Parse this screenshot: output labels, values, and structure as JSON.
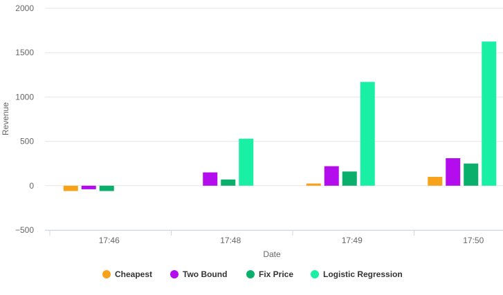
{
  "chart_data": {
    "type": "bar",
    "xlabel": "Date",
    "ylabel": "Revenue",
    "ylim": [
      -500,
      2000
    ],
    "yticks": [
      2000,
      1500,
      1000,
      500,
      0,
      -500
    ],
    "grid": true,
    "legend_position": "bottom",
    "categories": [
      "17:46",
      "17:48",
      "17:49",
      "17:50"
    ],
    "series": [
      {
        "name": "Cheapest",
        "color": "#f7a21b",
        "values": [
          -60,
          0,
          25,
          100
        ]
      },
      {
        "name": "Two Bound",
        "color": "#b30ded",
        "values": [
          -40,
          150,
          220,
          310
        ]
      },
      {
        "name": "Fix Price",
        "color": "#0aaf6c",
        "values": [
          -60,
          70,
          160,
          250
        ]
      },
      {
        "name": "Logistic Regression",
        "color": "#1af0a5",
        "values": [
          0,
          530,
          1170,
          1625
        ]
      }
    ]
  }
}
